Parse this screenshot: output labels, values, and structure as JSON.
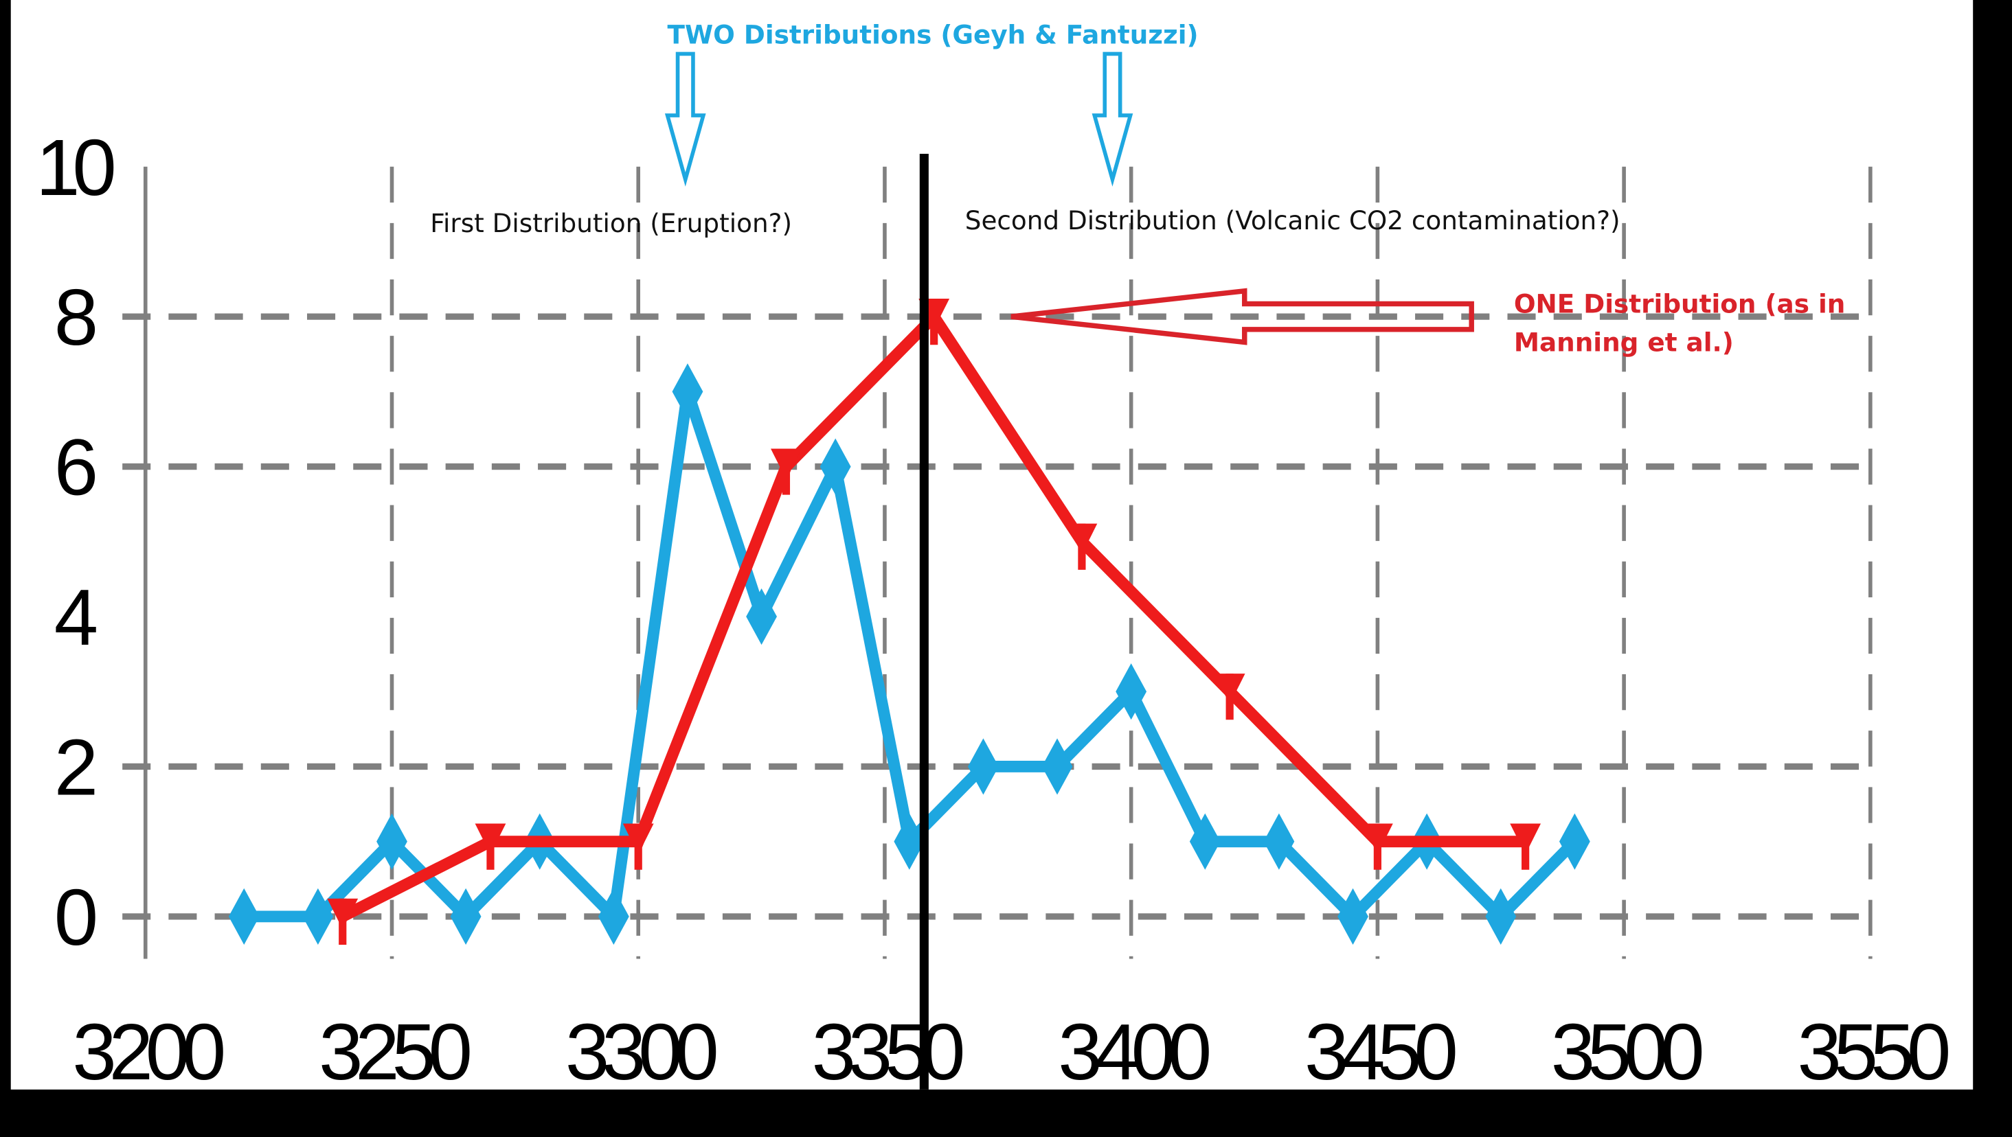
{
  "chart_data": {
    "type": "line",
    "title": "TWO Distributions (Geyh & Fantuzzi)",
    "xlabel": "",
    "ylabel": "",
    "xlim": [
      3200,
      3550
    ],
    "ylim": [
      0,
      10
    ],
    "x_ticks": [
      3200,
      3250,
      3300,
      3350,
      3400,
      3450,
      3500,
      3550
    ],
    "y_ticks": [
      0,
      2,
      4,
      6,
      8,
      10
    ],
    "y_grid_dashed": [
      0,
      2,
      6,
      8
    ],
    "grid": true,
    "divider_x": 3358,
    "series": [
      {
        "name": "TWO Distributions (Geyh & Fantuzzi)",
        "color": "#1ea7e0",
        "marker": "diamond",
        "x": [
          3220,
          3235,
          3250,
          3265,
          3280,
          3295,
          3310,
          3325,
          3340,
          3355,
          3370,
          3385,
          3400,
          3415,
          3430,
          3445,
          3460,
          3475,
          3490
        ],
        "y": [
          0,
          0,
          1,
          0,
          1,
          0,
          7,
          4,
          6,
          1,
          2,
          2,
          3,
          1,
          1,
          0,
          1,
          0,
          1
        ]
      },
      {
        "name": "ONE Distribution (as in Manning et al.)",
        "color": "#ee1c1c",
        "marker": "triangle-down",
        "x": [
          3240,
          3270,
          3300,
          3330,
          3360,
          3390,
          3420,
          3450,
          3480
        ],
        "y": [
          0,
          1,
          1,
          6,
          8,
          5,
          3,
          1,
          1
        ]
      }
    ],
    "annotations": {
      "first": "First Distribution (Eruption?)",
      "second": "Second Distribution (Volcanic CO2 contamination?)",
      "one_line1": "ONE Distribution (as in",
      "one_line2": "Manning et al.)"
    }
  }
}
